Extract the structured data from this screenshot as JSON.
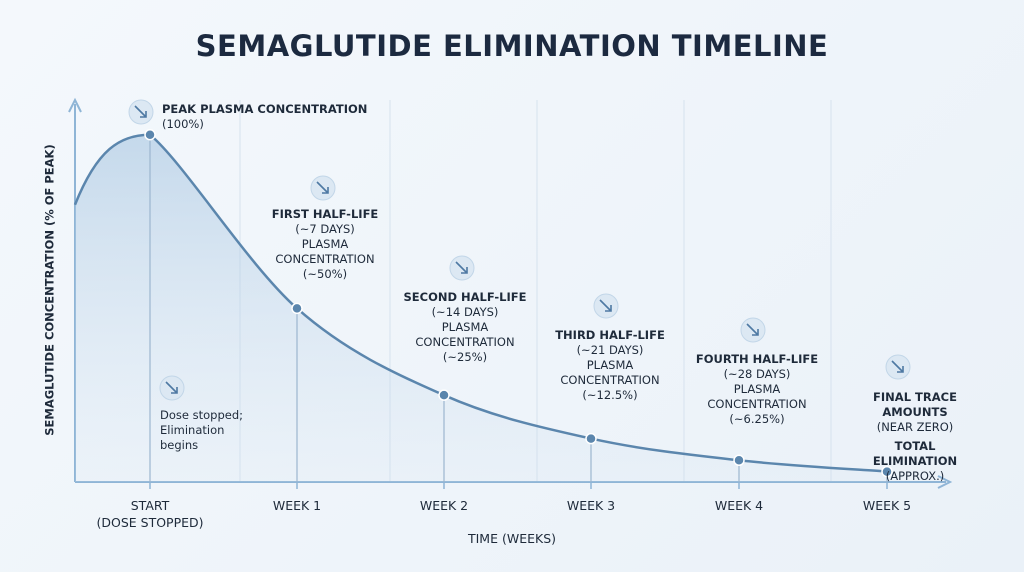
{
  "chart_data": {
    "type": "line",
    "title": "SEMAGLUTIDE ELIMINATION TIMELINE",
    "x_label": "TIME (WEEKS)",
    "y_label": "SEMAGLUTIDE CONCENTRATION (% OF PEAK)",
    "categories": [
      "START\n(DOSE STOPPED)",
      "WEEK 1",
      "WEEK 2",
      "WEEK 3",
      "WEEK 4",
      "WEEK 5"
    ],
    "values": [
      100,
      50,
      25,
      12.5,
      6.25,
      3
    ],
    "value_labels": [
      "(100%)",
      "(~50%)",
      "(~25%)",
      "(~12.5%)",
      "(~6.25%)",
      "(NEAR ZERO)"
    ],
    "color": "#5b86ad",
    "ylim": [
      0,
      110
    ],
    "annotations": [
      {
        "heading": "PEAK PLASMA CONCENTRATION"
      },
      {
        "heading": "FIRST HALF-LIFE",
        "period": "(~7 DAYS)",
        "caption": "PLASMA\nCONCENTRATION"
      },
      {
        "heading": "SECOND HALF-LIFE",
        "period": "(~14 DAYS)",
        "caption": "PLASMA\nCONCENTRATION"
      },
      {
        "heading": "THIRD HALF-LIFE",
        "period": "(~21 DAYS)",
        "caption": "PLASMA\nCONCENTRATION"
      },
      {
        "heading": "FOURTH HALF-LIFE",
        "period": "(~28 DAYS)",
        "caption": "PLASMA\nCONCENTRATION"
      },
      {
        "heading": "FINAL TRACE AMOUNTS",
        "footer": "TOTAL ELIMINATION",
        "footer_note": "(APPROX.)"
      }
    ],
    "note": "Dose stopped;\nElimination\nbegins"
  }
}
